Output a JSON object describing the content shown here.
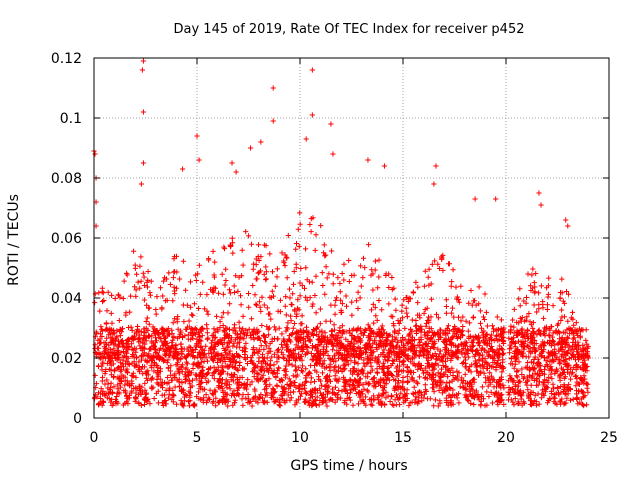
{
  "chart_data": {
    "type": "scatter",
    "title": "Day 145 of 2019, Rate Of TEC Index for receiver p452",
    "xlabel": "GPS time / hours",
    "ylabel": "ROTI / TECUs",
    "xlim": [
      0,
      25
    ],
    "ylim": [
      0,
      0.12
    ],
    "x_ticks": [
      0,
      5,
      10,
      15,
      20,
      25
    ],
    "x_tick_labels": [
      "0",
      "5",
      "10",
      "15",
      "20",
      "25"
    ],
    "y_ticks": [
      0,
      0.02,
      0.04,
      0.06,
      0.08,
      0.1,
      0.12
    ],
    "y_tick_labels": [
      "0",
      "0.02",
      "0.04",
      "0.06",
      "0.08",
      "0.1",
      "0.12"
    ],
    "grid": true,
    "marker": "+",
    "marker_color": "#ff0000",
    "series": [
      {
        "name": "ROTI",
        "description": "dense cloud of ROTI samples, mostly 0.005-0.03 TECU/s with spikes",
        "notable_points": [
          {
            "x": 0.0,
            "y": 0.089
          },
          {
            "x": 0.05,
            "y": 0.088
          },
          {
            "x": 0.1,
            "y": 0.08
          },
          {
            "x": 0.1,
            "y": 0.072
          },
          {
            "x": 0.1,
            "y": 0.064
          },
          {
            "x": 2.4,
            "y": 0.119
          },
          {
            "x": 2.35,
            "y": 0.116
          },
          {
            "x": 2.4,
            "y": 0.102
          },
          {
            "x": 2.4,
            "y": 0.085
          },
          {
            "x": 2.3,
            "y": 0.078
          },
          {
            "x": 5.0,
            "y": 0.094
          },
          {
            "x": 4.3,
            "y": 0.083
          },
          {
            "x": 5.1,
            "y": 0.086
          },
          {
            "x": 6.7,
            "y": 0.085
          },
          {
            "x": 6.9,
            "y": 0.082
          },
          {
            "x": 7.6,
            "y": 0.09
          },
          {
            "x": 8.1,
            "y": 0.092
          },
          {
            "x": 8.7,
            "y": 0.11
          },
          {
            "x": 8.7,
            "y": 0.099
          },
          {
            "x": 10.6,
            "y": 0.116
          },
          {
            "x": 10.6,
            "y": 0.101
          },
          {
            "x": 10.3,
            "y": 0.093
          },
          {
            "x": 11.5,
            "y": 0.098
          },
          {
            "x": 11.6,
            "y": 0.088
          },
          {
            "x": 13.3,
            "y": 0.086
          },
          {
            "x": 14.1,
            "y": 0.084
          },
          {
            "x": 16.6,
            "y": 0.084
          },
          {
            "x": 16.5,
            "y": 0.078
          },
          {
            "x": 18.5,
            "y": 0.073
          },
          {
            "x": 19.5,
            "y": 0.073
          },
          {
            "x": 21.6,
            "y": 0.075
          },
          {
            "x": 21.7,
            "y": 0.071
          },
          {
            "x": 22.9,
            "y": 0.066
          },
          {
            "x": 23.0,
            "y": 0.064
          }
        ],
        "envelope_hours": [
          0,
          1,
          2,
          3,
          4,
          5,
          6,
          7,
          8,
          9,
          10,
          11,
          12,
          13,
          14,
          15,
          16,
          17,
          18,
          19,
          20,
          21,
          22,
          23,
          24
        ],
        "envelope_upper": [
          0.05,
          0.04,
          0.06,
          0.045,
          0.055,
          0.06,
          0.055,
          0.065,
          0.06,
          0.06,
          0.07,
          0.065,
          0.05,
          0.06,
          0.055,
          0.04,
          0.05,
          0.055,
          0.045,
          0.045,
          0.03,
          0.05,
          0.05,
          0.045,
          0.02
        ],
        "gaps_hours": [
          [
            19.9,
            20.1
          ]
        ],
        "x_range": [
          0,
          24
        ],
        "baseline_range": [
          0.004,
          0.03
        ]
      }
    ]
  }
}
